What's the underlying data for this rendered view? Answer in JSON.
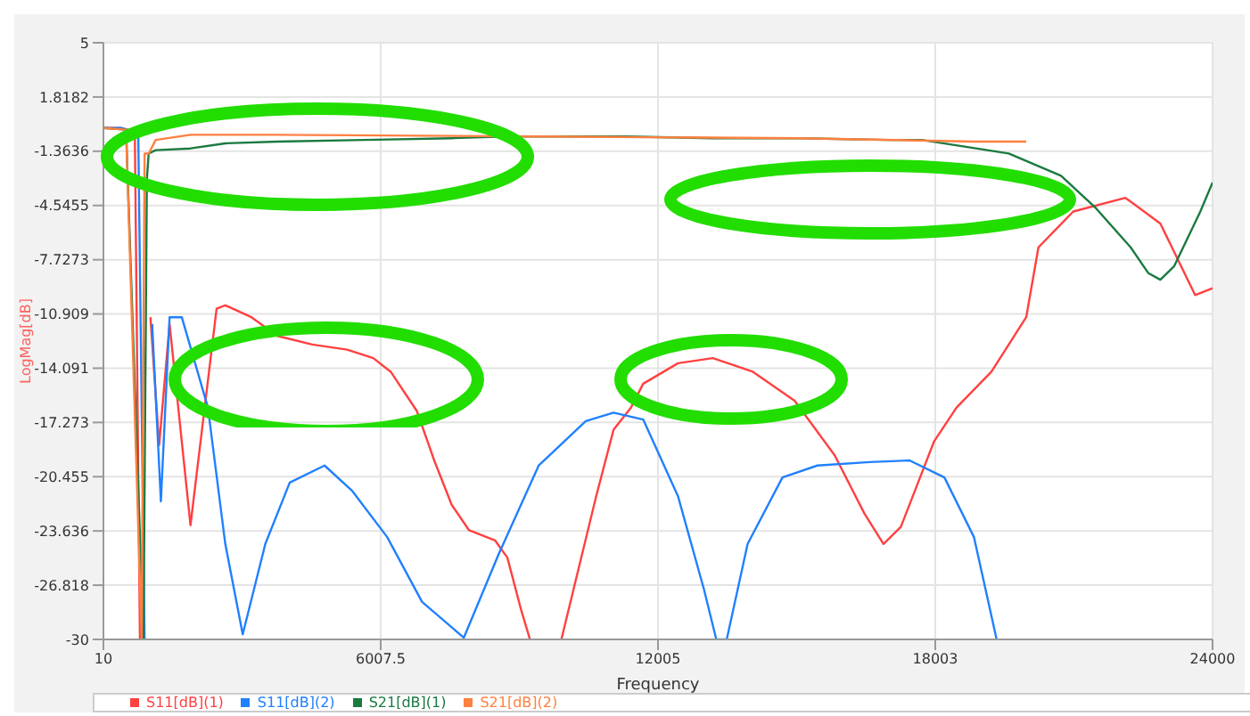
{
  "chart_data": {
    "type": "line",
    "xlabel": "Frequency",
    "ylabel": "LogMag[dB]",
    "xlim": [
      10,
      24000
    ],
    "xticks": [
      10,
      6007.5,
      12005,
      18003,
      24000
    ],
    "ylim": [
      -30,
      5
    ],
    "yticks": [
      5,
      1.8182,
      -1.3636,
      -4.5455,
      -7.7273,
      -10.909,
      -14.091,
      -17.273,
      -20.455,
      -23.636,
      -26.818,
      -30
    ],
    "grid": true,
    "legend": "bottom",
    "marker": "none",
    "line_style": "solid",
    "series": [
      {
        "name": "S11[dB](1)",
        "color": "#ff4040",
        "x": [
          10,
          387,
          689,
          800,
          876,
          1027,
          1215,
          1441,
          1893,
          2458,
          2646,
          3211,
          3776,
          4529,
          5282,
          5847,
          6224,
          6789,
          7165,
          7542,
          7919,
          8483,
          8747,
          9048,
          9236,
          9400,
          9915,
          10668,
          11044,
          11421,
          11685,
          12438,
          13191,
          14057,
          14960,
          15827,
          16467,
          16882,
          17258,
          17974,
          18463,
          19217,
          19970,
          20234,
          20987,
          22116,
          22870,
          23623,
          24000
        ],
        "values": [
          0,
          0,
          -0.2,
          -30,
          null,
          -11.1,
          -18.6,
          -11.5,
          -23.3,
          -10.6,
          -10.4,
          -11.1,
          -12.2,
          -12.7,
          -13,
          -13.5,
          -14.3,
          -16.6,
          -19.5,
          -22.1,
          -23.6,
          -24.2,
          -25.2,
          -28.3,
          -30,
          null,
          -30,
          -21.6,
          -17.7,
          -16.4,
          -15,
          -13.8,
          -13.5,
          -14.3,
          -16,
          -19.2,
          -22.6,
          -24.4,
          -23.4,
          -18.4,
          -16.4,
          -14.3,
          -11.1,
          -7,
          -4.9,
          -4.1,
          -5.6,
          -9.8,
          -9.4
        ]
      },
      {
        "name": "S11[dB](2)",
        "color": "#2080ff",
        "x": [
          10,
          387,
          763,
          900,
          950,
          1064,
          1253,
          1441,
          1705,
          2270,
          2646,
          3023,
          3512,
          4040,
          4793,
          5395,
          6148,
          6902,
          7806,
          8559,
          9425,
          10442,
          11044,
          11685,
          12438,
          13003,
          13266,
          13492,
          13944,
          14697,
          15450,
          16580,
          17446,
          18200,
          18840,
          19330
        ],
        "values": [
          0,
          0,
          -0.3,
          -30,
          null,
          -11.5,
          -21.9,
          -11.1,
          -11.1,
          -16.4,
          -24.4,
          -29.7,
          -24.4,
          -20.8,
          -19.8,
          -21.3,
          -24,
          -27.8,
          -29.9,
          -25,
          -19.8,
          -17.2,
          -16.7,
          -17.1,
          -21.6,
          -27.1,
          -30,
          -30,
          -24.4,
          -20.5,
          -19.8,
          -19.6,
          -19.5,
          -20.5,
          -24,
          -30
        ]
      },
      {
        "name": "S21[dB](1)",
        "color": "#1a7a40",
        "x": [
          10,
          500,
          876,
          950,
          989,
          1140,
          1893,
          2646,
          3776,
          5659,
          7542,
          8672,
          11308,
          13191,
          15074,
          16957,
          17710,
          19593,
          20723,
          21476,
          22229,
          22606,
          22870,
          23171,
          23736,
          24000
        ],
        "values": [
          0,
          -0.1,
          -30,
          -3,
          -1.5,
          -1.3,
          -1.2,
          -0.9,
          -0.8,
          -0.7,
          -0.6,
          -0.5,
          -0.5,
          -0.6,
          -0.6,
          -0.7,
          -0.7,
          -1.5,
          -2.8,
          -4.7,
          -7,
          -8.5,
          -8.9,
          -8.1,
          -4.9,
          -3.2
        ]
      },
      {
        "name": "S21[dB](2)",
        "color": "#ff8040",
        "x": [
          10,
          500,
          838,
          900,
          989,
          1140,
          1893,
          3776,
          9425,
          15074,
          18840,
          19970
        ],
        "values": [
          0,
          -0.1,
          -30,
          -1.5,
          -1.5,
          -0.7,
          -0.4,
          -0.4,
          -0.5,
          -0.6,
          -0.8,
          -0.8
        ]
      }
    ]
  }
}
